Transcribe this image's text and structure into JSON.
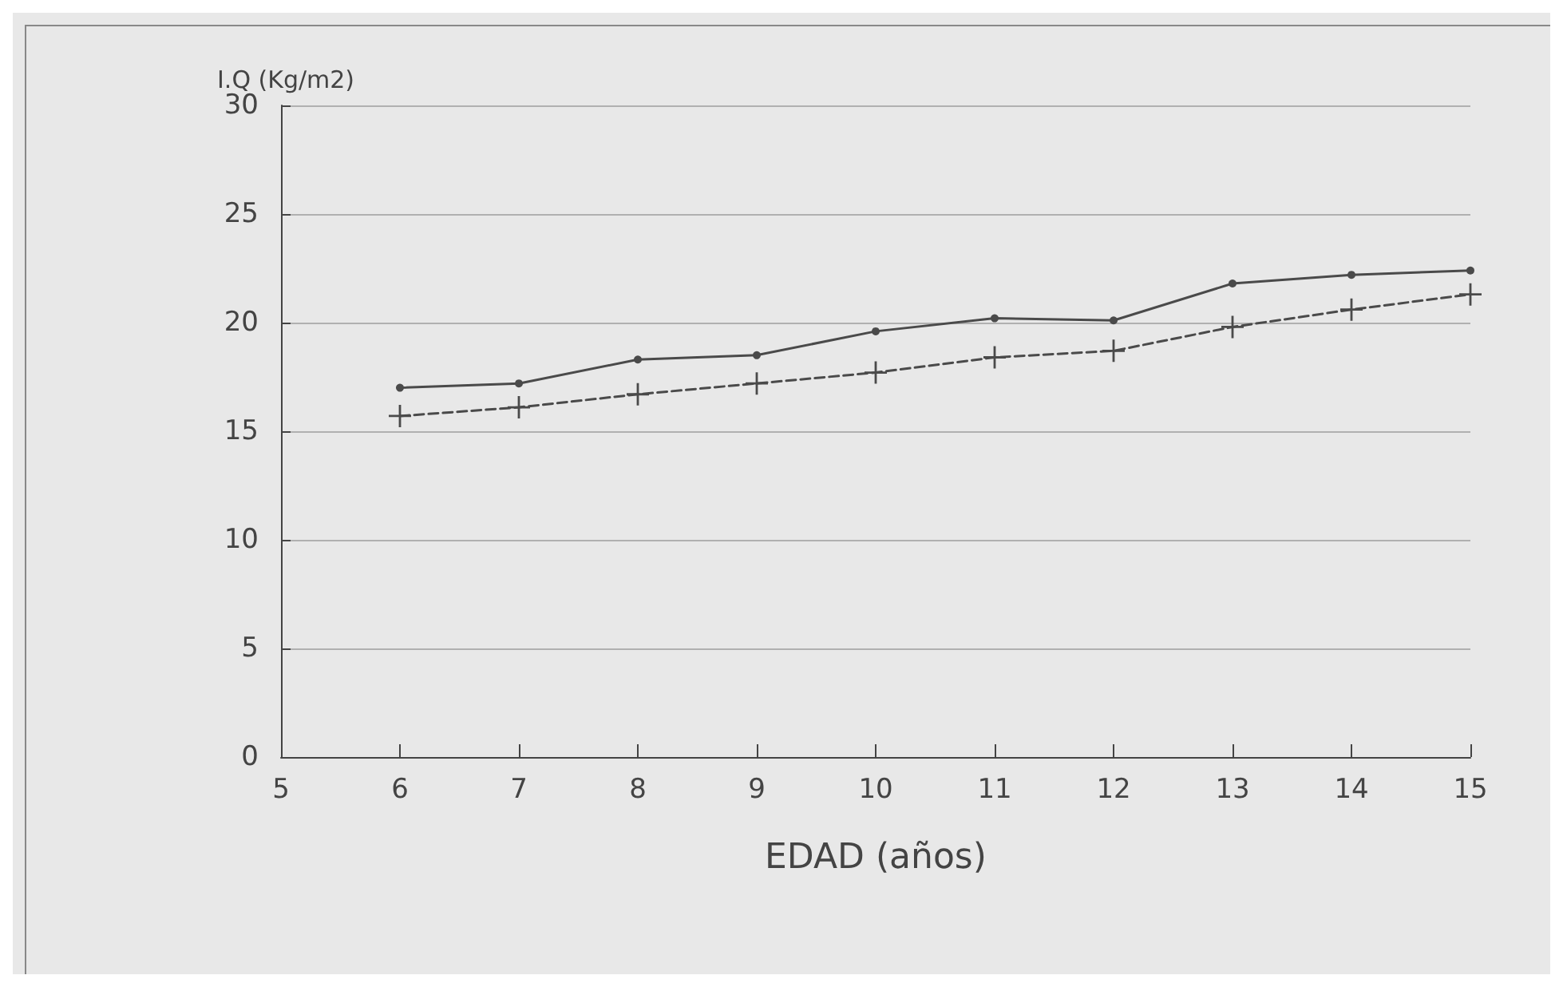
{
  "chart_data": {
    "type": "line",
    "ylabel": "I.Q (Kg/m2)",
    "xlabel": "EDAD (años)",
    "x": [
      6,
      7,
      8,
      9,
      10,
      11,
      12,
      13,
      14,
      15
    ],
    "series": [
      {
        "color": "#4a4a4a",
        "marker": "circle",
        "line_style": "solid",
        "values": [
          17.0,
          17.2,
          18.3,
          18.5,
          19.6,
          20.2,
          20.1,
          21.8,
          22.2,
          22.4
        ]
      },
      {
        "color": "#4a4a4a",
        "marker": "cross",
        "line_style": "dashed",
        "values": [
          15.7,
          16.1,
          16.7,
          17.2,
          17.7,
          18.4,
          18.7,
          19.8,
          20.6,
          21.3
        ]
      }
    ],
    "xlim": [
      5,
      15
    ],
    "xticks": [
      5,
      6,
      7,
      8,
      9,
      10,
      11,
      12,
      13,
      14,
      15
    ],
    "ylim": [
      0,
      30
    ],
    "yticks": [
      0,
      5,
      10,
      15,
      20,
      25,
      30
    ],
    "grid": "y"
  }
}
